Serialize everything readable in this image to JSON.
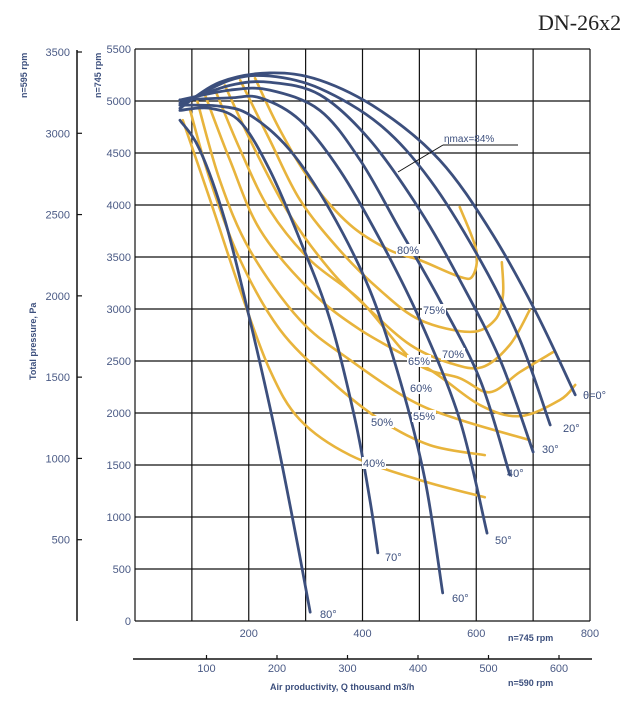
{
  "chart_data": {
    "type": "line",
    "title": "DN-26x2",
    "colors": {
      "blade_angle": "#3c4f7d",
      "efficiency": "#e8b43c",
      "grid": "#111111"
    },
    "grid": true,
    "x_axis_primary": {
      "label": "n=745 rpm",
      "ticks": [
        200,
        400,
        600,
        800
      ],
      "range": [
        0,
        800
      ]
    },
    "x_axis_secondary": {
      "label": "n=590 rpm",
      "ticks": [
        100,
        200,
        300,
        400,
        500,
        600
      ]
    },
    "xlabel": "Air productivity, Q thousand m3/h",
    "y_axis_primary": {
      "label": "n=745 rpm",
      "ticks": [
        0,
        500,
        1000,
        1500,
        2000,
        2500,
        3000,
        3500,
        4000,
        4500,
        5000,
        5500
      ],
      "range": [
        0,
        5500
      ]
    },
    "y_axis_secondary": {
      "label": "n=595 rpm",
      "ticks": [
        500,
        1000,
        1500,
        2000,
        2500,
        3000,
        3500
      ]
    },
    "ylabel": "Total pressure, Pa",
    "annotation": "ηmax=84%",
    "blade_angle_series": [
      {
        "name": "θ=0°",
        "points": [
          [
            79,
            4930
          ],
          [
            149,
            5180
          ],
          [
            237,
            5270
          ],
          [
            325,
            5200
          ],
          [
            431,
            4910
          ],
          [
            536,
            4430
          ],
          [
            624,
            3760
          ],
          [
            703,
            2990
          ],
          [
            774,
            2175
          ]
        ]
      },
      {
        "name": "20°",
        "points": [
          [
            79,
            4960
          ],
          [
            167,
            5200
          ],
          [
            237,
            5240
          ],
          [
            325,
            5120
          ],
          [
            431,
            4770
          ],
          [
            519,
            4240
          ],
          [
            607,
            3470
          ],
          [
            677,
            2700
          ],
          [
            730,
            1885
          ]
        ]
      },
      {
        "name": "30°",
        "points": [
          [
            79,
            4980
          ],
          [
            167,
            5150
          ],
          [
            237,
            5180
          ],
          [
            325,
            5060
          ],
          [
            413,
            4625
          ],
          [
            501,
            3950
          ],
          [
            571,
            3280
          ],
          [
            642,
            2510
          ],
          [
            700,
            1625
          ]
        ]
      },
      {
        "name": "40°",
        "points": [
          [
            79,
            5010
          ],
          [
            167,
            5105
          ],
          [
            237,
            5105
          ],
          [
            325,
            4910
          ],
          [
            396,
            4430
          ],
          [
            466,
            3760
          ],
          [
            536,
            3085
          ],
          [
            607,
            2315
          ],
          [
            659,
            1405
          ]
        ]
      },
      {
        "name": "50°",
        "points": [
          [
            79,
            5010
          ],
          [
            167,
            5030
          ],
          [
            220,
            5030
          ],
          [
            290,
            4815
          ],
          [
            360,
            4335
          ],
          [
            431,
            3665
          ],
          [
            501,
            2895
          ],
          [
            571,
            1935
          ],
          [
            619,
            845
          ]
        ]
      },
      {
        "name": "60°",
        "points": [
          [
            79,
            4960
          ],
          [
            149,
            4950
          ],
          [
            202,
            4865
          ],
          [
            272,
            4530
          ],
          [
            343,
            3950
          ],
          [
            413,
            3180
          ],
          [
            466,
            2315
          ],
          [
            510,
            1355
          ],
          [
            541,
            270
          ]
        ]
      },
      {
        "name": "70°",
        "points": [
          [
            79,
            4910
          ],
          [
            132,
            4930
          ],
          [
            185,
            4800
          ],
          [
            237,
            4335
          ],
          [
            290,
            3665
          ],
          [
            343,
            2895
          ],
          [
            387,
            1935
          ],
          [
            413,
            1165
          ],
          [
            427,
            655
          ]
        ]
      },
      {
        "name": "80°",
        "points": [
          [
            79,
            4815
          ],
          [
            114,
            4530
          ],
          [
            158,
            3855
          ],
          [
            202,
            2895
          ],
          [
            246,
            1835
          ],
          [
            281,
            875
          ],
          [
            308,
            85
          ]
        ]
      }
    ],
    "efficiency_series": [
      {
        "name": "40%",
        "points": [
          [
            84,
            4815
          ],
          [
            132,
            4050
          ],
          [
            185,
            3180
          ],
          [
            237,
            2415
          ],
          [
            290,
            1935
          ],
          [
            378,
            1595
          ],
          [
            501,
            1355
          ],
          [
            615,
            1190
          ]
        ]
      },
      {
        "name": "50%",
        "points": [
          [
            97,
            4910
          ],
          [
            132,
            4240
          ],
          [
            185,
            3470
          ],
          [
            255,
            2800
          ],
          [
            343,
            2315
          ],
          [
            431,
            1935
          ],
          [
            519,
            1690
          ],
          [
            615,
            1595
          ]
        ]
      },
      {
        "name": "55%",
        "points": [
          [
            109,
            5010
          ],
          [
            149,
            4240
          ],
          [
            202,
            3565
          ],
          [
            290,
            2895
          ],
          [
            378,
            2510
          ],
          [
            484,
            2125
          ],
          [
            571,
            1935
          ],
          [
            694,
            1740
          ]
        ]
      },
      {
        "name": "60%",
        "points": [
          [
            123,
            5060
          ],
          [
            167,
            4430
          ],
          [
            220,
            3760
          ],
          [
            308,
            3180
          ],
          [
            396,
            2800
          ],
          [
            519,
            2415
          ],
          [
            607,
            2075
          ],
          [
            677,
            1970
          ],
          [
            747,
            2125
          ],
          [
            774,
            2270
          ]
        ]
      },
      {
        "name": "65%",
        "points": [
          [
            141,
            5105
          ],
          [
            185,
            4530
          ],
          [
            237,
            3950
          ],
          [
            308,
            3470
          ],
          [
            396,
            3085
          ],
          [
            492,
            2490
          ],
          [
            571,
            2335
          ],
          [
            624,
            2200
          ],
          [
            677,
            2395
          ],
          [
            735,
            2585
          ]
        ]
      },
      {
        "name": "70%",
        "points": [
          [
            158,
            5150
          ],
          [
            211,
            4530
          ],
          [
            272,
            3905
          ],
          [
            343,
            3375
          ],
          [
            413,
            2990
          ],
          [
            484,
            2655
          ],
          [
            554,
            2480
          ],
          [
            610,
            2440
          ],
          [
            659,
            2655
          ],
          [
            694,
            2990
          ]
        ]
      },
      {
        "name": "75%",
        "points": [
          [
            185,
            5200
          ],
          [
            237,
            4625
          ],
          [
            290,
            4050
          ],
          [
            360,
            3565
          ],
          [
            431,
            3180
          ],
          [
            501,
            2895
          ],
          [
            589,
            2780
          ],
          [
            633,
            2895
          ],
          [
            647,
            3135
          ],
          [
            645,
            3450
          ]
        ]
      },
      {
        "name": "80%",
        "points": [
          [
            211,
            5220
          ],
          [
            255,
            4720
          ],
          [
            308,
            4240
          ],
          [
            378,
            3810
          ],
          [
            448,
            3565
          ],
          [
            501,
            3470
          ],
          [
            571,
            3310
          ],
          [
            594,
            3320
          ],
          [
            600,
            3565
          ],
          [
            571,
            3980
          ]
        ]
      }
    ]
  }
}
